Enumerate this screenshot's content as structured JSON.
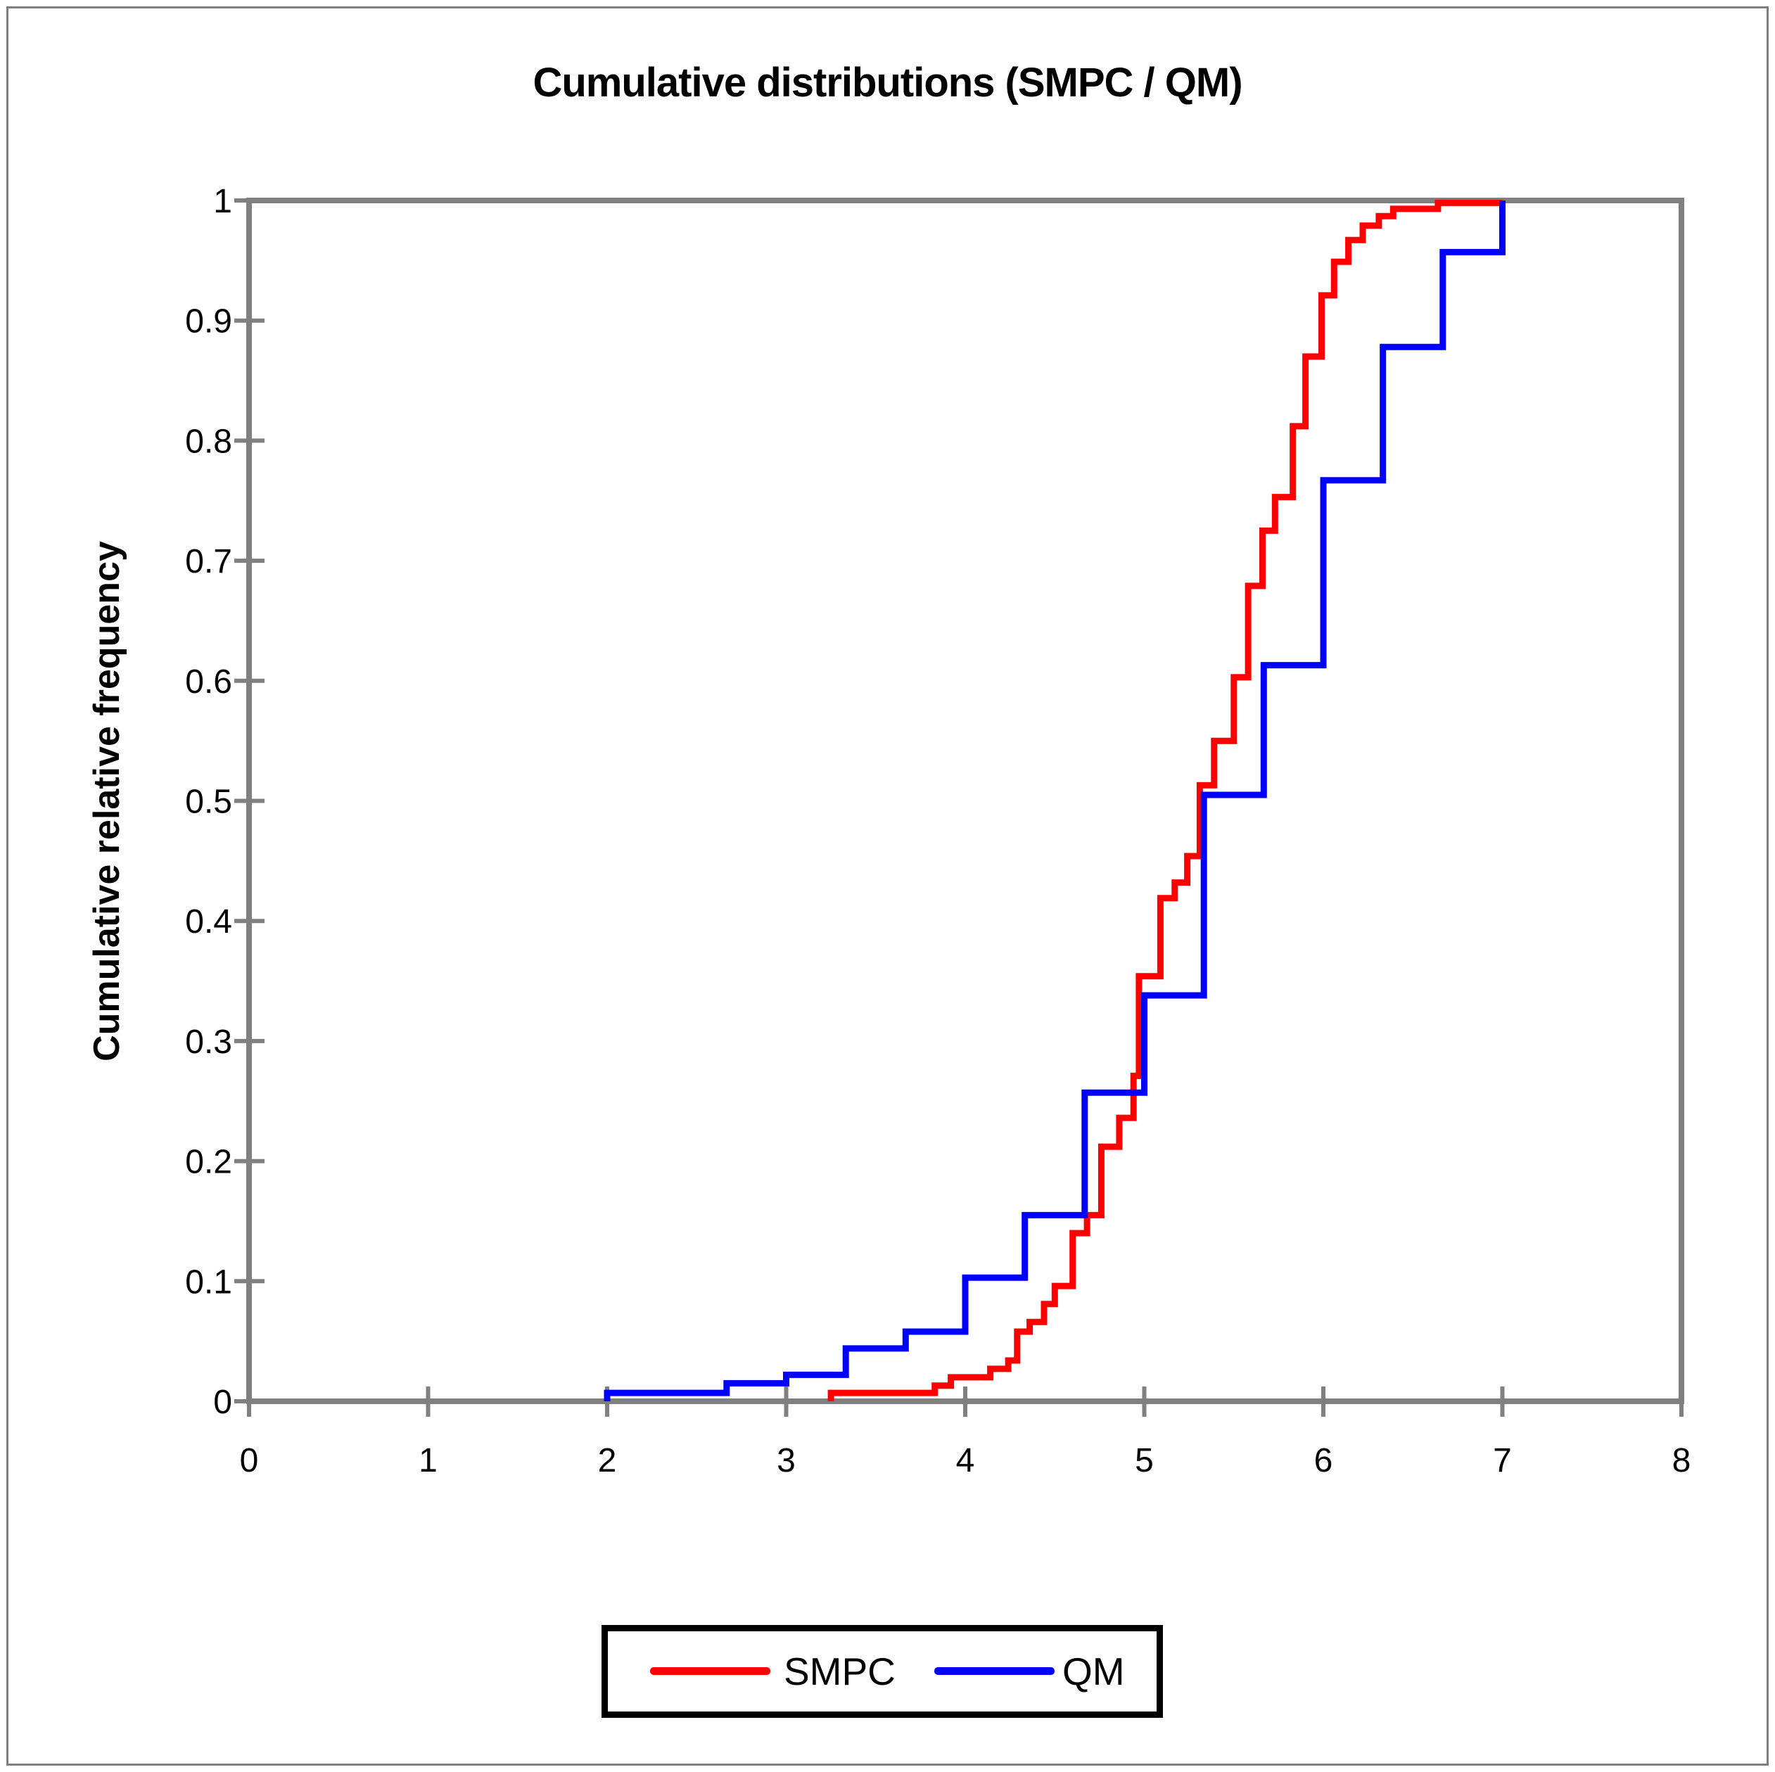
{
  "figure": {
    "title": "Cumulative distributions (SMPC / QM)"
  },
  "colors": {
    "frame": "#808080",
    "smpc": "#ff0000",
    "qm": "#0000ff",
    "text": "#000000",
    "legend_border": "#000000",
    "outer_border": "#7f7f7f"
  },
  "chart_data": {
    "type": "line",
    "subtype": "step-cumulative-frequency",
    "title": "Cumulative distributions (SMPC / QM)",
    "xlabel": "",
    "ylabel": "Cumulative relative frequency",
    "xlim": [
      0,
      8
    ],
    "ylim": [
      0,
      1
    ],
    "grid": false,
    "x_ticks": [
      {
        "value": 0,
        "label": "0"
      },
      {
        "value": 1,
        "label": "1"
      },
      {
        "value": 2,
        "label": "2"
      },
      {
        "value": 3,
        "label": "3"
      },
      {
        "value": 4,
        "label": "4"
      },
      {
        "value": 5,
        "label": "5"
      },
      {
        "value": 6,
        "label": "6"
      },
      {
        "value": 7,
        "label": "7"
      },
      {
        "value": 8,
        "label": "8"
      }
    ],
    "y_ticks": [
      {
        "value": 0.0,
        "label": "0"
      },
      {
        "value": 0.1,
        "label": "0.1"
      },
      {
        "value": 0.2,
        "label": "0.2"
      },
      {
        "value": 0.3,
        "label": "0.3"
      },
      {
        "value": 0.4,
        "label": "0.4"
      },
      {
        "value": 0.5,
        "label": "0.5"
      },
      {
        "value": 0.6,
        "label": "0.6"
      },
      {
        "value": 0.7,
        "label": "0.7"
      },
      {
        "value": 0.8,
        "label": "0.8"
      },
      {
        "value": 0.9,
        "label": "0.9"
      },
      {
        "value": 1.0,
        "label": "1"
      }
    ],
    "legend": {
      "position": "bottom-center",
      "entries": [
        {
          "label": "SMPC",
          "color": "#ff0000"
        },
        {
          "label": "QM",
          "color": "#0000ff"
        }
      ]
    },
    "series": [
      {
        "name": "SMPC",
        "color": "#ff0000",
        "start_x": 3.25,
        "end_x": 7.0,
        "steps": [
          [
            3.25,
            0.007
          ],
          [
            3.83,
            0.013
          ],
          [
            3.92,
            0.02
          ],
          [
            4.14,
            0.027
          ],
          [
            4.24,
            0.034
          ],
          [
            4.29,
            0.058
          ],
          [
            4.36,
            0.066
          ],
          [
            4.44,
            0.081
          ],
          [
            4.5,
            0.096
          ],
          [
            4.6,
            0.14
          ],
          [
            4.68,
            0.155
          ],
          [
            4.76,
            0.212
          ],
          [
            4.86,
            0.236
          ],
          [
            4.94,
            0.271
          ],
          [
            4.97,
            0.354
          ],
          [
            5.09,
            0.419
          ],
          [
            5.17,
            0.432
          ],
          [
            5.24,
            0.454
          ],
          [
            5.31,
            0.513
          ],
          [
            5.39,
            0.55
          ],
          [
            5.5,
            0.603
          ],
          [
            5.58,
            0.679
          ],
          [
            5.66,
            0.725
          ],
          [
            5.73,
            0.753
          ],
          [
            5.83,
            0.812
          ],
          [
            5.9,
            0.87
          ],
          [
            5.99,
            0.921
          ],
          [
            6.06,
            0.949
          ],
          [
            6.14,
            0.967
          ],
          [
            6.22,
            0.979
          ],
          [
            6.31,
            0.987
          ],
          [
            6.39,
            0.993
          ],
          [
            6.64,
            0.998
          ]
        ]
      },
      {
        "name": "QM",
        "color": "#0000ff",
        "start_x": 2.0,
        "end_x": 7.0,
        "steps": [
          [
            2.0,
            0.007
          ],
          [
            2.667,
            0.015
          ],
          [
            3.0,
            0.022
          ],
          [
            3.333,
            0.044
          ],
          [
            3.667,
            0.058
          ],
          [
            4.0,
            0.103
          ],
          [
            4.333,
            0.155
          ],
          [
            4.667,
            0.257
          ],
          [
            5.0,
            0.338
          ],
          [
            5.333,
            0.505
          ],
          [
            5.667,
            0.613
          ],
          [
            6.0,
            0.767
          ],
          [
            6.333,
            0.878
          ],
          [
            6.667,
            0.957
          ],
          [
            7.0,
            1.0
          ]
        ]
      }
    ]
  }
}
